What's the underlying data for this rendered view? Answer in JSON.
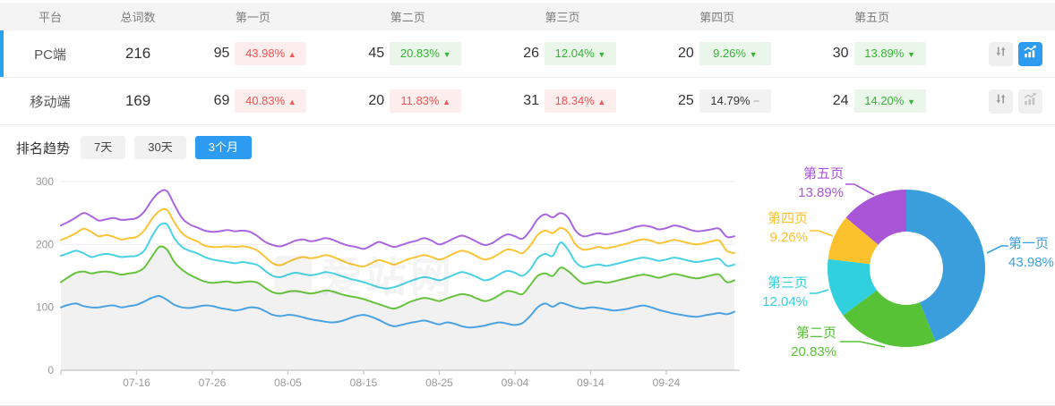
{
  "table": {
    "headers": {
      "platform": "平台",
      "total": "总词数",
      "pages": [
        "第一页",
        "第二页",
        "第三页",
        "第四页",
        "第五页"
      ]
    },
    "rows": [
      {
        "platform": "PC端",
        "total": "216",
        "selected": true,
        "chart_active": true,
        "pages": [
          {
            "count": "95",
            "pct": "43.98%",
            "dir": "up"
          },
          {
            "count": "45",
            "pct": "20.83%",
            "dir": "down"
          },
          {
            "count": "26",
            "pct": "12.04%",
            "dir": "down"
          },
          {
            "count": "20",
            "pct": "9.26%",
            "dir": "down"
          },
          {
            "count": "30",
            "pct": "13.89%",
            "dir": "down"
          }
        ]
      },
      {
        "platform": "移动端",
        "total": "169",
        "selected": false,
        "chart_active": false,
        "pages": [
          {
            "count": "69",
            "pct": "40.83%",
            "dir": "up"
          },
          {
            "count": "20",
            "pct": "11.83%",
            "dir": "up"
          },
          {
            "count": "31",
            "pct": "18.34%",
            "dir": "up"
          },
          {
            "count": "25",
            "pct": "14.79%",
            "dir": "flat"
          },
          {
            "count": "24",
            "pct": "14.20%",
            "dir": "down"
          }
        ]
      }
    ]
  },
  "trend": {
    "label": "排名趋势",
    "ranges": [
      {
        "label": "7天",
        "active": false
      },
      {
        "label": "30天",
        "active": false
      },
      {
        "label": "3个月",
        "active": true
      }
    ]
  },
  "watermark": "爱站网",
  "colors": {
    "accent_blue": "#2d9cf0",
    "row_indicator": "#29a3f1",
    "badge_up_text": "#f25555",
    "badge_up_bg": "#fdeded",
    "badge_down_text": "#35b435",
    "badge_down_bg": "#eaf6ea",
    "badge_flat_bg": "#f2f2f2"
  },
  "chart_data": [
    {
      "type": "line",
      "title": "排名趋势 (3个月, 累计排名词数)",
      "x_range": [
        "07-06",
        "10-03"
      ],
      "x_tick_labels": [
        "07-16",
        "07-26",
        "08-05",
        "08-15",
        "08-25",
        "09-04",
        "09-14",
        "09-24"
      ],
      "x_tick_positions": [
        10,
        20,
        30,
        40,
        50,
        60,
        70,
        80
      ],
      "ylim": [
        0,
        300
      ],
      "y_ticks": [
        0,
        100,
        200,
        300
      ],
      "grid": true,
      "legend": "none",
      "series": [
        {
          "name": "第一页",
          "color": "#4BA2E3",
          "values": [
            100,
            104,
            106,
            102,
            100,
            100,
            102,
            103,
            100,
            102,
            104,
            109,
            115,
            118,
            112,
            104,
            100,
            99,
            101,
            103,
            102,
            99,
            97,
            95,
            97,
            100,
            99,
            94,
            88,
            86,
            88,
            87,
            84,
            81,
            79,
            77,
            76,
            78,
            82,
            86,
            88,
            85,
            80,
            74,
            70,
            72,
            75,
            77,
            79,
            76,
            73,
            76,
            74,
            70,
            68,
            69,
            71,
            74,
            76,
            74,
            72,
            75,
            86,
            100,
            106,
            101,
            107,
            104,
            100,
            98,
            100,
            99,
            97,
            95,
            96,
            98,
            101,
            103,
            100,
            96,
            93,
            90,
            88,
            86,
            85,
            87,
            89,
            91,
            89,
            93
          ]
        },
        {
          "name": "第二页",
          "color": "#67C23E",
          "area_fill": "#f1f1f1",
          "values": [
            140,
            148,
            155,
            157,
            154,
            156,
            157,
            155,
            152,
            154,
            156,
            163,
            180,
            196,
            192,
            172,
            160,
            152,
            146,
            141,
            139,
            140,
            141,
            139,
            140,
            141,
            139,
            131,
            124,
            122,
            125,
            126,
            124,
            122,
            124,
            127,
            125,
            121,
            118,
            116,
            113,
            109,
            105,
            101,
            98,
            102,
            108,
            112,
            115,
            113,
            110,
            114,
            118,
            121,
            119,
            114,
            110,
            113,
            120,
            126,
            124,
            121,
            135,
            150,
            154,
            150,
            163,
            158,
            147,
            138,
            139,
            141,
            139,
            141,
            144,
            147,
            150,
            152,
            150,
            147,
            150,
            153,
            151,
            148,
            146,
            148,
            151,
            152,
            140,
            143
          ]
        },
        {
          "name": "第三页",
          "color": "#49D2E4",
          "values": [
            182,
            186,
            190,
            186,
            180,
            183,
            185,
            183,
            180,
            181,
            182,
            190,
            212,
            230,
            232,
            210,
            196,
            190,
            186,
            180,
            176,
            174,
            172,
            170,
            172,
            170,
            167,
            158,
            150,
            148,
            152,
            155,
            153,
            151,
            153,
            156,
            154,
            150,
            146,
            143,
            140,
            136,
            132,
            130,
            132,
            136,
            141,
            145,
            148,
            146,
            143,
            147,
            152,
            156,
            153,
            148,
            143,
            146,
            153,
            158,
            155,
            150,
            160,
            178,
            185,
            182,
            203,
            192,
            172,
            164,
            166,
            168,
            166,
            168,
            171,
            174,
            177,
            179,
            177,
            174,
            176,
            179,
            177,
            174,
            172,
            174,
            176,
            177,
            166,
            168
          ]
        },
        {
          "name": "第四页",
          "color": "#FBC437",
          "values": [
            207,
            212,
            218,
            225,
            220,
            213,
            215,
            212,
            208,
            210,
            212,
            222,
            240,
            253,
            255,
            235,
            218,
            210,
            205,
            198,
            196,
            196,
            197,
            196,
            197,
            195,
            190,
            180,
            170,
            167,
            172,
            177,
            180,
            178,
            180,
            183,
            180,
            175,
            170,
            167,
            165,
            170,
            175,
            172,
            168,
            172,
            177,
            180,
            183,
            180,
            176,
            180,
            186,
            190,
            187,
            181,
            176,
            179,
            186,
            192,
            190,
            186,
            198,
            215,
            222,
            218,
            226,
            220,
            200,
            192,
            193,
            196,
            194,
            196,
            199,
            202,
            206,
            208,
            206,
            202,
            204,
            207,
            205,
            202,
            200,
            202,
            205,
            206,
            190,
            186
          ]
        },
        {
          "name": "第五页",
          "color": "#AA66DE",
          "values": [
            230,
            236,
            243,
            250,
            245,
            238,
            240,
            242,
            239,
            240,
            242,
            252,
            270,
            283,
            285,
            263,
            242,
            232,
            227,
            222,
            220,
            221,
            223,
            221,
            222,
            220,
            213,
            204,
            199,
            197,
            201,
            206,
            208,
            205,
            207,
            210,
            207,
            202,
            198,
            196,
            193,
            198,
            204,
            200,
            196,
            199,
            203,
            206,
            210,
            206,
            200,
            204,
            210,
            214,
            210,
            204,
            199,
            202,
            210,
            216,
            213,
            209,
            222,
            240,
            248,
            243,
            250,
            243,
            222,
            213,
            215,
            218,
            216,
            218,
            221,
            224,
            228,
            230,
            228,
            224,
            226,
            230,
            228,
            224,
            221,
            222,
            224,
            225,
            212,
            213
          ]
        }
      ]
    },
    {
      "type": "pie",
      "donut": true,
      "legend_position": "labels-with-leader-lines",
      "slices": [
        {
          "label": "第一页",
          "value": 43.98,
          "pct": "43.98%",
          "color": "#3B9EDC"
        },
        {
          "label": "第二页",
          "value": 20.83,
          "pct": "20.83%",
          "color": "#57C235"
        },
        {
          "label": "第三页",
          "value": 12.04,
          "pct": "12.04%",
          "color": "#30D0DE"
        },
        {
          "label": "第四页",
          "value": 9.26,
          "pct": "9.26%",
          "color": "#FBC22D"
        },
        {
          "label": "第五页",
          "value": 13.89,
          "pct": "13.89%",
          "color": "#A855D8"
        }
      ]
    }
  ]
}
